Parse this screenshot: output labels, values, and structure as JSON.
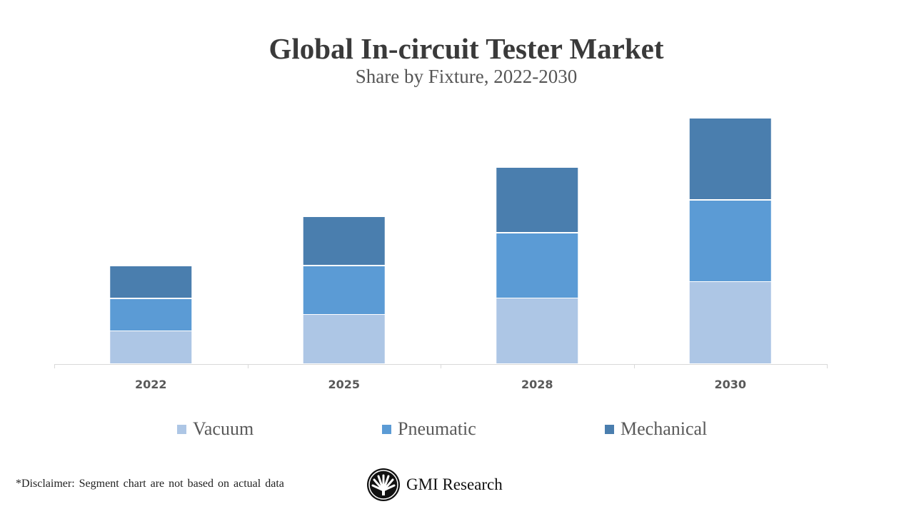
{
  "chart_data": {
    "type": "bar",
    "stacked": true,
    "title": "Global In-circuit Tester Market",
    "subtitle": "Share by Fixture, 2022-2030",
    "categories": [
      "2022",
      "2025",
      "2028",
      "2030"
    ],
    "series": [
      {
        "name": "Vacuum",
        "color": "#adc6e5",
        "values": [
          2,
          3,
          4,
          5
        ]
      },
      {
        "name": "Pneumatic",
        "color": "#5b9bd5",
        "values": [
          2,
          3,
          4,
          5
        ]
      },
      {
        "name": "Mechanical",
        "color": "#4a7eae",
        "values": [
          2,
          3,
          4,
          5
        ]
      }
    ],
    "y_axis_shown": false,
    "grid": false,
    "legend": "bottom"
  },
  "footer": {
    "disclaimer": "*Disclaimer:  Segment chart are not based on actual data",
    "logo_text": "GMI Research"
  }
}
